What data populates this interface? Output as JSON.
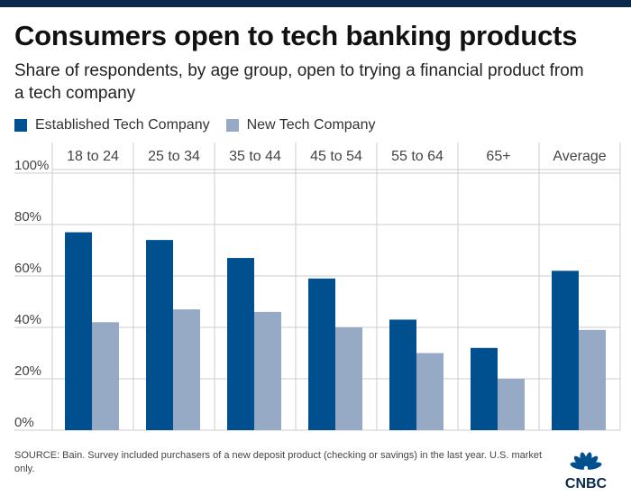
{
  "title": "Consumers open to tech banking products",
  "subtitle": "Share of respondents, by age group, open to trying a financial product from a tech company",
  "legend": [
    {
      "label": "Established Tech Company",
      "color": "#00508f"
    },
    {
      "label": "New Tech Company",
      "color": "#96a9c5"
    }
  ],
  "source": "SOURCE: Bain. Survey included purchasers of a new deposit product (checking or savings) in the last year. U.S. market only.",
  "logo_text": "CNBC",
  "chart_data": {
    "type": "bar",
    "title": "Consumers open to tech banking products",
    "categories": [
      "18 to 24",
      "25 to 34",
      "35 to 44",
      "45 to 54",
      "55 to 64",
      "65+",
      "Average"
    ],
    "series": [
      {
        "name": "Established Tech Company",
        "values": [
          77,
          74,
          67,
          59,
          43,
          32,
          62
        ]
      },
      {
        "name": "New Tech Company",
        "values": [
          42,
          47,
          46,
          40,
          30,
          20,
          39
        ]
      }
    ],
    "yticks": [
      "100%",
      "80%",
      "60%",
      "40%",
      "20%",
      "0%"
    ],
    "ytick_values": [
      100,
      80,
      60,
      40,
      20,
      0
    ],
    "ylim": [
      0,
      100
    ],
    "xlabel": "",
    "ylabel": "",
    "grid": true,
    "colors": {
      "established": "#00508f",
      "new": "#96a9c5",
      "grid": "#cccccc"
    }
  }
}
